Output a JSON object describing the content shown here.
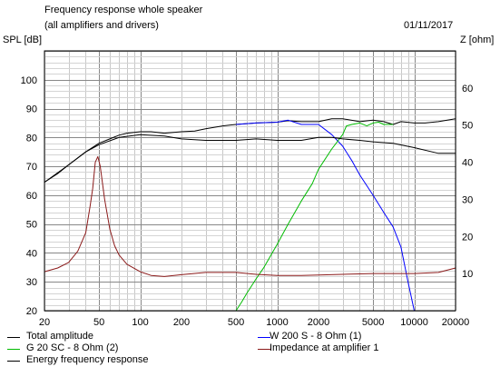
{
  "chart_data": {
    "type": "line",
    "title": "Frequency response whole speaker",
    "subtitle": "(all amplifiers and drivers)",
    "date": "01/11/2017",
    "ylabel": "SPL [dB]",
    "y2label": "Z [ohm]",
    "xscale": "log",
    "xlim": [
      20,
      20000
    ],
    "ylim": [
      20,
      110
    ],
    "y2lim": [
      0,
      70
    ],
    "grid": true,
    "x_ticks": [
      20,
      50,
      100,
      200,
      500,
      1000,
      2000,
      5000,
      10000,
      20000
    ],
    "x_tick_labels": [
      "20",
      "50",
      "100",
      "200",
      "500",
      "1000",
      "2000",
      "5000",
      "10000",
      "20000"
    ],
    "y_ticks": [
      20,
      30,
      40,
      50,
      60,
      70,
      80,
      90,
      100
    ],
    "y_tick_labels": [
      "20",
      "30",
      "40",
      "50",
      "60",
      "70",
      "80",
      "90",
      "100"
    ],
    "y2_ticks": [
      10,
      20,
      30,
      40,
      50,
      60
    ],
    "y2_tick_labels": [
      "10",
      "20",
      "30",
      "40",
      "50",
      "60"
    ],
    "series": [
      {
        "name": "Total amplitude",
        "color": "#000000",
        "axis": "left",
        "points": [
          [
            20,
            64.5
          ],
          [
            25,
            67.5
          ],
          [
            30,
            70.5
          ],
          [
            40,
            75
          ],
          [
            50,
            78
          ],
          [
            60,
            79.5
          ],
          [
            70,
            80.8
          ],
          [
            80,
            81.5
          ],
          [
            100,
            82
          ],
          [
            120,
            82
          ],
          [
            150,
            81.5
          ],
          [
            200,
            82
          ],
          [
            250,
            82.2
          ],
          [
            300,
            83
          ],
          [
            400,
            84
          ],
          [
            500,
            84.5
          ],
          [
            700,
            85
          ],
          [
            1000,
            85.3
          ],
          [
            1200,
            85.8
          ],
          [
            1500,
            85.5
          ],
          [
            2000,
            85.5
          ],
          [
            2500,
            86.5
          ],
          [
            3000,
            86.5
          ],
          [
            4000,
            85.5
          ],
          [
            5000,
            86
          ],
          [
            6000,
            85.5
          ],
          [
            7000,
            84.5
          ],
          [
            8000,
            85.5
          ],
          [
            10000,
            85
          ],
          [
            12000,
            85
          ],
          [
            15000,
            85.5
          ],
          [
            20000,
            86.5
          ]
        ]
      },
      {
        "name": "W 200 S - 8 Ohm (1)",
        "color": "#0000ff",
        "axis": "left",
        "points": [
          [
            500,
            84.5
          ],
          [
            700,
            85
          ],
          [
            1000,
            85.3
          ],
          [
            1200,
            86
          ],
          [
            1500,
            84.5
          ],
          [
            2000,
            84.5
          ],
          [
            2500,
            81
          ],
          [
            3000,
            77
          ],
          [
            3500,
            72
          ],
          [
            4000,
            67
          ],
          [
            5000,
            60
          ],
          [
            6000,
            54
          ],
          [
            7000,
            49
          ],
          [
            8000,
            42
          ],
          [
            9000,
            30
          ],
          [
            10000,
            20
          ]
        ]
      },
      {
        "name": "G 20 SC - 8 Ohm (2)",
        "color": "#00bb00",
        "axis": "left",
        "points": [
          [
            20,
            20
          ],
          [
            500,
            20
          ],
          [
            550,
            23
          ],
          [
            600,
            26
          ],
          [
            700,
            31
          ],
          [
            800,
            35
          ],
          [
            1000,
            43
          ],
          [
            1200,
            50
          ],
          [
            1500,
            58
          ],
          [
            1800,
            64
          ],
          [
            2000,
            69
          ],
          [
            2500,
            76
          ],
          [
            3000,
            81
          ],
          [
            3200,
            84
          ],
          [
            3500,
            84.5
          ],
          [
            4000,
            85
          ],
          [
            4500,
            84
          ],
          [
            5000,
            85
          ],
          [
            5500,
            85.3
          ],
          [
            6000,
            84.5
          ],
          [
            7000,
            84.5
          ]
        ]
      },
      {
        "name": "Energy frequency response",
        "color": "#000000",
        "axis": "left",
        "points": [
          [
            20,
            64.5
          ],
          [
            30,
            70.5
          ],
          [
            40,
            75
          ],
          [
            50,
            77.5
          ],
          [
            70,
            80
          ],
          [
            100,
            81
          ],
          [
            150,
            80.5
          ],
          [
            200,
            79.5
          ],
          [
            300,
            79
          ],
          [
            500,
            79
          ],
          [
            700,
            79.5
          ],
          [
            1000,
            79
          ],
          [
            1500,
            79
          ],
          [
            2000,
            80
          ],
          [
            2500,
            80
          ],
          [
            3000,
            79.5
          ],
          [
            4000,
            79
          ],
          [
            5000,
            78.5
          ],
          [
            7000,
            78
          ],
          [
            10000,
            76.5
          ],
          [
            15000,
            74.5
          ],
          [
            20000,
            74.5
          ]
        ]
      },
      {
        "name": "Impedance at amplifier 1",
        "color": "#8b1a1a",
        "axis": "right",
        "points": [
          [
            20,
            10.5
          ],
          [
            25,
            11.5
          ],
          [
            30,
            13
          ],
          [
            35,
            16
          ],
          [
            40,
            21
          ],
          [
            43,
            28
          ],
          [
            45,
            33
          ],
          [
            47,
            40
          ],
          [
            49,
            41.5
          ],
          [
            51,
            39
          ],
          [
            55,
            30
          ],
          [
            60,
            22
          ],
          [
            65,
            17.5
          ],
          [
            70,
            15
          ],
          [
            80,
            12.5
          ],
          [
            100,
            10.5
          ],
          [
            120,
            9.5
          ],
          [
            150,
            9.2
          ],
          [
            200,
            9.7
          ],
          [
            300,
            10.3
          ],
          [
            500,
            10.3
          ],
          [
            700,
            9.8
          ],
          [
            1000,
            9.5
          ],
          [
            1500,
            9.5
          ],
          [
            2000,
            9.6
          ],
          [
            3000,
            9.8
          ],
          [
            5000,
            10
          ],
          [
            7000,
            10
          ],
          [
            10000,
            10
          ],
          [
            15000,
            10.3
          ],
          [
            20000,
            11.5
          ]
        ]
      }
    ]
  }
}
